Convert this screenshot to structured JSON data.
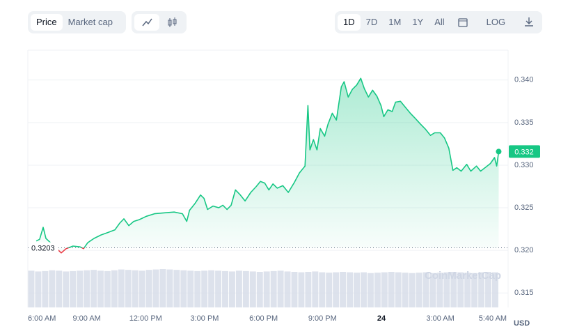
{
  "toolbar": {
    "data_tabs": [
      "Price",
      "Market cap"
    ],
    "ranges": [
      "1D",
      "7D",
      "1M",
      "1Y",
      "All"
    ],
    "scale": "LOG"
  },
  "chart_data": {
    "type": "line",
    "currency": "USD",
    "watermark": "CoinMarketCap",
    "series": [
      {
        "name": "Price",
        "color": "#16c784",
        "below_color": "#ea3943",
        "x": [
          6.43,
          6.6,
          6.78,
          6.92,
          7.06,
          7.7,
          7.95,
          8.3,
          8.66,
          8.84,
          9.05,
          9.37,
          9.72,
          10.08,
          10.43,
          10.68,
          10.89,
          11.14,
          11.39,
          11.67,
          12.03,
          12.45,
          12.91,
          13.45,
          13.87,
          14.09,
          14.23,
          14.51,
          14.79,
          14.97,
          15.15,
          15.43,
          15.72,
          15.93,
          16.14,
          16.35,
          16.57,
          16.82,
          17.06,
          17.35,
          17.63,
          17.84,
          18.06,
          18.27,
          18.48,
          18.7,
          18.98,
          19.26,
          19.55,
          19.83,
          20.11,
          20.26,
          20.36,
          20.54,
          20.72,
          20.89,
          21.11,
          21.28,
          21.5,
          21.71,
          21.96,
          22.1,
          22.31,
          22.52,
          22.74,
          22.95,
          23.13,
          23.34,
          23.55,
          23.77,
          23.98,
          24.12,
          24.33,
          24.55,
          24.72,
          24.97,
          25.22,
          25.47,
          25.72,
          26.0,
          26.25,
          26.5,
          26.71,
          27.0,
          27.21,
          27.43,
          27.64,
          27.84,
          28.06,
          28.34,
          28.55,
          28.84,
          29.05,
          29.33,
          29.55,
          29.76,
          29.87,
          29.97
        ],
        "values": [
          0.3211,
          0.3213,
          0.3227,
          0.3214,
          0.3211,
          0.3197,
          0.3202,
          0.3205,
          0.3204,
          0.3202,
          0.3209,
          0.3214,
          0.3218,
          0.3221,
          0.3224,
          0.3232,
          0.3237,
          0.3229,
          0.3234,
          0.3236,
          0.324,
          0.3243,
          0.3244,
          0.3245,
          0.3243,
          0.3234,
          0.3247,
          0.3255,
          0.3265,
          0.3261,
          0.3248,
          0.3252,
          0.325,
          0.3253,
          0.3248,
          0.3253,
          0.3271,
          0.3265,
          0.3258,
          0.3268,
          0.3275,
          0.3281,
          0.3279,
          0.3271,
          0.3278,
          0.3273,
          0.3276,
          0.3268,
          0.3279,
          0.3291,
          0.3299,
          0.337,
          0.3318,
          0.333,
          0.3318,
          0.3343,
          0.3334,
          0.3348,
          0.3361,
          0.3353,
          0.3392,
          0.3398,
          0.338,
          0.3389,
          0.3394,
          0.3402,
          0.339,
          0.338,
          0.3388,
          0.3381,
          0.337,
          0.3357,
          0.3365,
          0.3363,
          0.3374,
          0.3375,
          0.3368,
          0.3361,
          0.3355,
          0.3348,
          0.3342,
          0.3335,
          0.3338,
          0.3338,
          0.3332,
          0.332,
          0.3294,
          0.3297,
          0.3293,
          0.3301,
          0.3293,
          0.3299,
          0.3293,
          0.3298,
          0.3302,
          0.3309,
          0.3299,
          0.3316
        ]
      }
    ],
    "reference": 0.3203,
    "current_price": {
      "value": 0.3316,
      "label": "0.332"
    },
    "volume": [
      92,
      90,
      91,
      93,
      92,
      90,
      91,
      92,
      93,
      94,
      92,
      91,
      93,
      95,
      94,
      93,
      92,
      94,
      95,
      96,
      95,
      94,
      93,
      92,
      91,
      92,
      93,
      92,
      91,
      90,
      92,
      91,
      90,
      89,
      90,
      91,
      92,
      90,
      89,
      88,
      89,
      90,
      88,
      87,
      88,
      89,
      88,
      87,
      88,
      86,
      87,
      88,
      89,
      88,
      87,
      86,
      87,
      88,
      86,
      87,
      88,
      89,
      88,
      87,
      86,
      88,
      89,
      88
    ],
    "xlim": [
      6,
      30.45
    ],
    "xticks": [
      {
        "value": 6,
        "label": "6:00 AM"
      },
      {
        "value": 9,
        "label": "9:00 AM"
      },
      {
        "value": 12,
        "label": "12:00 PM"
      },
      {
        "value": 15,
        "label": "3:00 PM"
      },
      {
        "value": 18,
        "label": "6:00 PM"
      },
      {
        "value": 21,
        "label": "9:00 PM"
      },
      24,
      {
        "value": 27,
        "label": "3:00 AM"
      },
      {
        "value": 29.667,
        "label": "5:40 AM"
      }
    ],
    "ylim": [
      0.3133,
      0.3435
    ],
    "yticks": [
      0.315,
      {
        "value": 0.32,
        "label": "0.320"
      },
      0.325,
      {
        "value": 0.33,
        "label": "0.330"
      },
      0.335,
      {
        "value": 0.34,
        "label": "0.340"
      }
    ],
    "grid": true
  }
}
